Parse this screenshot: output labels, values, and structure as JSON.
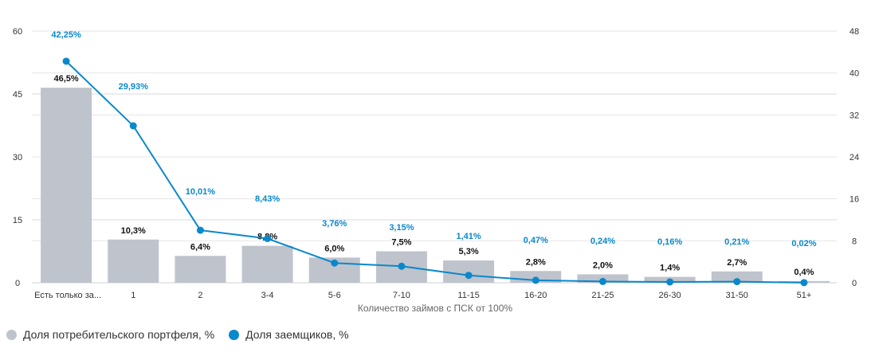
{
  "chart_data": {
    "type": "bar+line",
    "xlabel": "Количество займов с ПСК от 100%",
    "categories": [
      "Есть только за...",
      "1",
      "2",
      "3-4",
      "5-6",
      "7-10",
      "11-15",
      "16-20",
      "21-25",
      "26-30",
      "31-50",
      "51+"
    ],
    "left_axis": {
      "ylim": [
        0,
        60
      ],
      "ticks": [
        "0",
        "15",
        "30",
        "45",
        "60"
      ]
    },
    "right_axis": {
      "ylim": [
        0,
        48
      ],
      "ticks": [
        "0",
        "8",
        "16",
        "24",
        "32",
        "40",
        "48"
      ]
    },
    "grid": true,
    "legend_position": "bottom-left",
    "series": [
      {
        "name": "Доля потребительского портфеля, %",
        "type": "bar",
        "axis": "left",
        "color": "#bfc3cc",
        "values": [
          46.5,
          10.3,
          6.4,
          8.8,
          6.0,
          7.5,
          5.3,
          2.8,
          2.0,
          1.4,
          2.7,
          0.4
        ],
        "labels": [
          "46,5%",
          "10,3%",
          "6,4%",
          "8,8%",
          "6,0%",
          "7,5%",
          "5,3%",
          "2,8%",
          "2,0%",
          "1,4%",
          "2,7%",
          "0,4%"
        ]
      },
      {
        "name": "Доля заемщиков, %",
        "type": "line",
        "axis": "right",
        "color": "#0a88cc",
        "values": [
          42.25,
          29.93,
          10.01,
          8.43,
          3.76,
          3.15,
          1.41,
          0.47,
          0.24,
          0.16,
          0.21,
          0.02
        ],
        "labels": [
          "42,25%",
          "29,93%",
          "10,01%",
          "8,43%",
          "3,76%",
          "3,15%",
          "1,41%",
          "0,47%",
          "0,24%",
          "0,16%",
          "0,21%",
          "0,02%"
        ]
      }
    ]
  }
}
